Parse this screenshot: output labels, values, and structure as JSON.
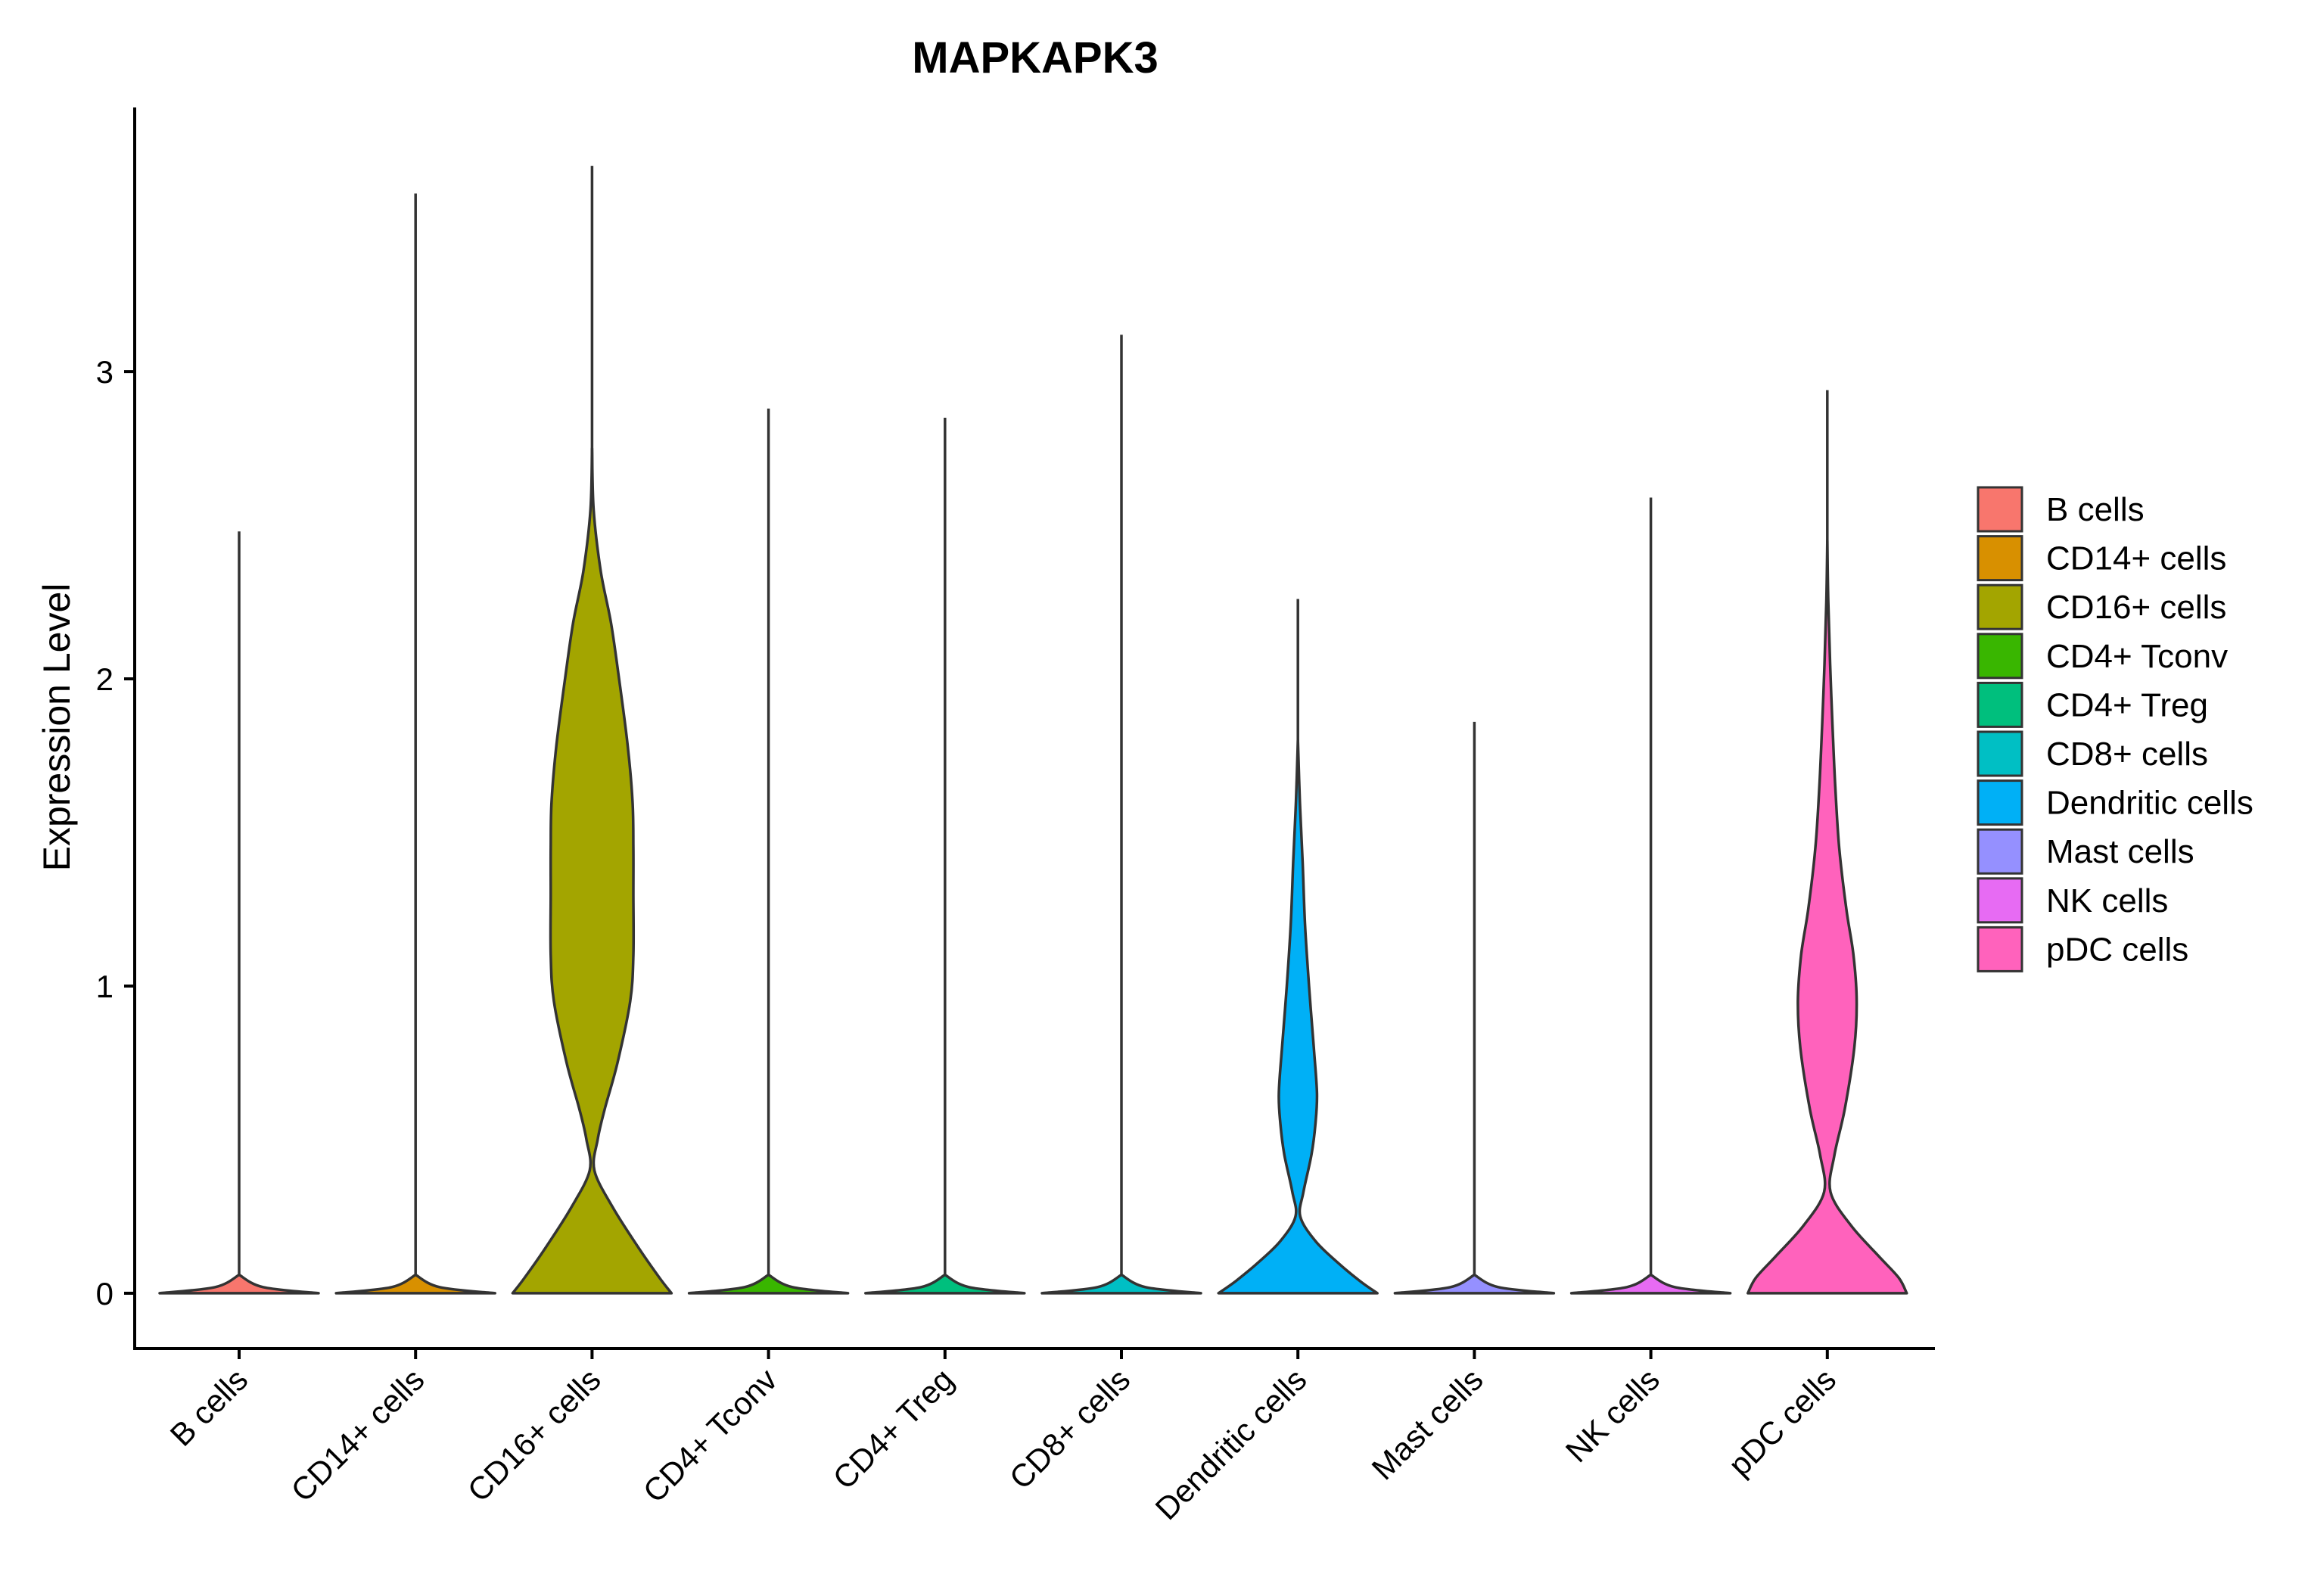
{
  "chart_data": {
    "type": "violin",
    "title": "MAPKAPK3",
    "xlabel": "",
    "ylabel": "Expression Level",
    "ylim": [
      -0.18,
      3.86
    ],
    "yticks": [
      0,
      1,
      2,
      3
    ],
    "grid": false,
    "legend_position": "right",
    "categories": [
      "B cells",
      "CD14+ cells",
      "CD16+ cells",
      "CD4+ Tconv",
      "CD4+ Treg",
      "CD8+ cells",
      "Dendritic cells",
      "Mast cells",
      "NK cells",
      "pDC cells"
    ],
    "colors": [
      "#F8766D",
      "#D89000",
      "#A3A500",
      "#39B600",
      "#00BF7D",
      "#00BFC4",
      "#00B0F6",
      "#9590FF",
      "#E76BF3",
      "#FF62BC"
    ],
    "series": [
      {
        "category": "B cells",
        "max": 2.48,
        "density": [
          [
            0,
            1.0
          ],
          [
            0.02,
            0.3
          ],
          [
            0.06,
            0.0
          ]
        ]
      },
      {
        "category": "CD14+ cells",
        "max": 3.58,
        "density": [
          [
            0,
            1.0
          ],
          [
            0.02,
            0.3
          ],
          [
            0.06,
            0.0
          ]
        ]
      },
      {
        "category": "CD16+ cells",
        "max": 3.67,
        "density": [
          [
            0,
            1.0
          ],
          [
            0.05,
            0.85
          ],
          [
            0.15,
            0.58
          ],
          [
            0.28,
            0.26
          ],
          [
            0.4,
            0.03
          ],
          [
            0.5,
            0.07
          ],
          [
            0.6,
            0.16
          ],
          [
            0.75,
            0.32
          ],
          [
            0.95,
            0.48
          ],
          [
            1.1,
            0.52
          ],
          [
            1.3,
            0.52
          ],
          [
            1.45,
            0.52
          ],
          [
            1.6,
            0.51
          ],
          [
            1.78,
            0.45
          ],
          [
            2.0,
            0.34
          ],
          [
            2.18,
            0.24
          ],
          [
            2.35,
            0.11
          ],
          [
            2.55,
            0.02
          ],
          [
            2.75,
            0.0
          ]
        ]
      },
      {
        "category": "CD4+ Tconv",
        "max": 2.88,
        "density": [
          [
            0,
            1.0
          ],
          [
            0.02,
            0.3
          ],
          [
            0.06,
            0.0
          ]
        ]
      },
      {
        "category": "CD4+ Treg",
        "max": 2.85,
        "density": [
          [
            0,
            1.0
          ],
          [
            0.02,
            0.3
          ],
          [
            0.06,
            0.0
          ]
        ]
      },
      {
        "category": "CD8+ cells",
        "max": 3.12,
        "density": [
          [
            0,
            1.0
          ],
          [
            0.02,
            0.3
          ],
          [
            0.06,
            0.0
          ]
        ]
      },
      {
        "category": "Dendritic cells",
        "max": 2.26,
        "density": [
          [
            0,
            1.0
          ],
          [
            0.04,
            0.78
          ],
          [
            0.1,
            0.5
          ],
          [
            0.17,
            0.22
          ],
          [
            0.25,
            0.03
          ],
          [
            0.33,
            0.07
          ],
          [
            0.45,
            0.17
          ],
          [
            0.55,
            0.22
          ],
          [
            0.65,
            0.24
          ],
          [
            0.8,
            0.2
          ],
          [
            1.0,
            0.14
          ],
          [
            1.2,
            0.09
          ],
          [
            1.4,
            0.06
          ],
          [
            1.6,
            0.025
          ],
          [
            1.8,
            0.0
          ]
        ]
      },
      {
        "category": "Mast cells",
        "max": 1.86,
        "density": [
          [
            0,
            1.0
          ],
          [
            0.02,
            0.3
          ],
          [
            0.06,
            0.0
          ]
        ]
      },
      {
        "category": "NK cells",
        "max": 2.59,
        "density": [
          [
            0,
            1.0
          ],
          [
            0.02,
            0.3
          ],
          [
            0.06,
            0.0
          ]
        ]
      },
      {
        "category": "pDC cells",
        "max": 2.94,
        "density": [
          [
            0,
            1.0
          ],
          [
            0.05,
            0.9
          ],
          [
            0.12,
            0.65
          ],
          [
            0.22,
            0.3
          ],
          [
            0.33,
            0.04
          ],
          [
            0.45,
            0.09
          ],
          [
            0.6,
            0.22
          ],
          [
            0.8,
            0.34
          ],
          [
            0.95,
            0.37
          ],
          [
            1.1,
            0.33
          ],
          [
            1.25,
            0.24
          ],
          [
            1.45,
            0.15
          ],
          [
            1.65,
            0.1
          ],
          [
            1.85,
            0.065
          ],
          [
            2.05,
            0.035
          ],
          [
            2.25,
            0.012
          ],
          [
            2.45,
            0.0
          ]
        ]
      }
    ]
  }
}
